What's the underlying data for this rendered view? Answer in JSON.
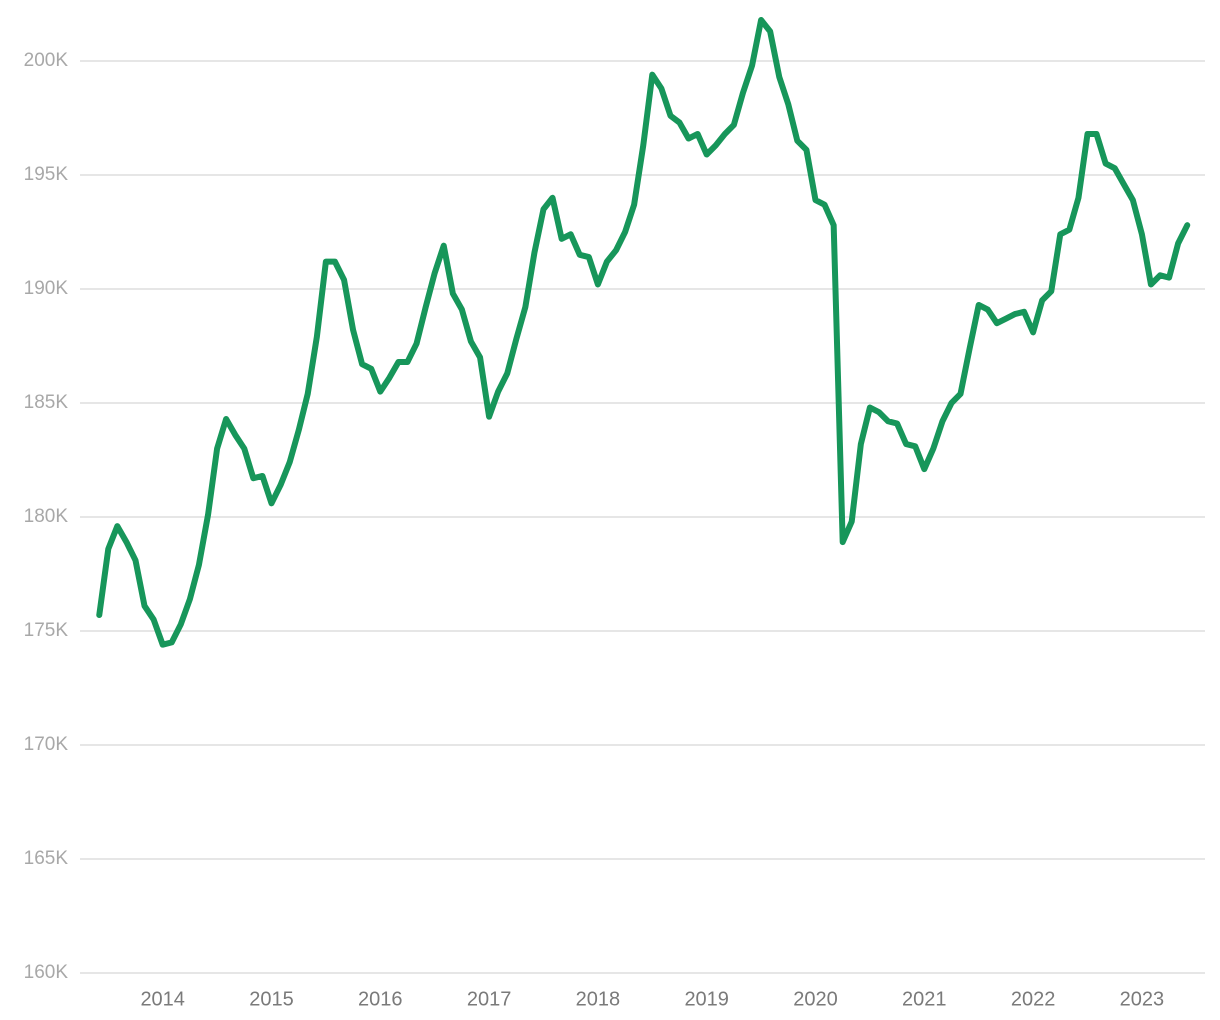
{
  "chart_data": {
    "type": "line",
    "color": "#17965a",
    "grid": true,
    "xlim": [
      2013.24,
      2023.58
    ],
    "xticks": [
      2014,
      2015,
      2016,
      2017,
      2018,
      2019,
      2020,
      2021,
      2022,
      2023
    ],
    "ylim": [
      160000,
      202000
    ],
    "yticks": [
      {
        "value": 160000,
        "label": "160K"
      },
      {
        "value": 165000,
        "label": "165K"
      },
      {
        "value": 170000,
        "label": "170K"
      },
      {
        "value": 175000,
        "label": "175K"
      },
      {
        "value": 180000,
        "label": "180K"
      },
      {
        "value": 185000,
        "label": "185K"
      },
      {
        "value": 190000,
        "label": "190K"
      },
      {
        "value": 195000,
        "label": "195K"
      },
      {
        "value": 200000,
        "label": "200K"
      }
    ],
    "x": [
      2013.417,
      2013.5,
      2013.583,
      2013.667,
      2013.75,
      2013.833,
      2013.917,
      2014,
      2014.083,
      2014.167,
      2014.25,
      2014.333,
      2014.417,
      2014.5,
      2014.583,
      2014.667,
      2014.75,
      2014.833,
      2014.917,
      2015,
      2015.083,
      2015.167,
      2015.25,
      2015.333,
      2015.417,
      2015.5,
      2015.583,
      2015.667,
      2015.75,
      2015.833,
      2015.917,
      2016,
      2016.083,
      2016.167,
      2016.25,
      2016.333,
      2016.417,
      2016.5,
      2016.583,
      2016.667,
      2016.75,
      2016.833,
      2016.917,
      2017,
      2017.083,
      2017.167,
      2017.25,
      2017.333,
      2017.417,
      2017.5,
      2017.583,
      2017.667,
      2017.75,
      2017.833,
      2017.917,
      2018,
      2018.083,
      2018.167,
      2018.25,
      2018.333,
      2018.417,
      2018.5,
      2018.583,
      2018.667,
      2018.75,
      2018.833,
      2018.917,
      2019,
      2019.083,
      2019.167,
      2019.25,
      2019.333,
      2019.417,
      2019.5,
      2019.583,
      2019.667,
      2019.75,
      2019.833,
      2019.917,
      2020,
      2020.083,
      2020.167,
      2020.25,
      2020.333,
      2020.417,
      2020.5,
      2020.583,
      2020.667,
      2020.75,
      2020.833,
      2020.917,
      2021,
      2021.083,
      2021.167,
      2021.25,
      2021.333,
      2021.417,
      2021.5,
      2021.583,
      2021.667,
      2021.75,
      2021.833,
      2021.917,
      2022,
      2022.083,
      2022.167,
      2022.25,
      2022.333,
      2022.417,
      2022.5,
      2022.583,
      2022.667,
      2022.75,
      2022.833,
      2022.917,
      2023,
      2023.083,
      2023.167,
      2023.25,
      2023.333,
      2023.417
    ],
    "values": [
      175700,
      178600,
      179600,
      178900,
      178100,
      176100,
      175500,
      174400,
      174500,
      175300,
      176400,
      177900,
      180100,
      183000,
      184300,
      183600,
      183000,
      181700,
      181800,
      180600,
      181400,
      182400,
      183800,
      185400,
      187900,
      191200,
      191200,
      190400,
      188200,
      186700,
      186500,
      185500,
      186100,
      186800,
      186800,
      187600,
      189200,
      190700,
      191900,
      189800,
      189100,
      187700,
      187000,
      184400,
      185500,
      186300,
      187800,
      189200,
      191600,
      193500,
      194000,
      192200,
      192400,
      191500,
      191400,
      190200,
      191200,
      191700,
      192500,
      193700,
      196300,
      199400,
      198800,
      197600,
      197300,
      196600,
      196800,
      195900,
      196300,
      196800,
      197200,
      198600,
      199800,
      201800,
      201300,
      199300,
      198100,
      196500,
      196100,
      193900,
      193700,
      192800,
      178900,
      179800,
      183200,
      184800,
      184600,
      184200,
      184100,
      183200,
      183100,
      182100,
      183000,
      184200,
      185000,
      185400,
      187400,
      189300,
      189100,
      188500,
      188700,
      188900,
      189000,
      188100,
      189500,
      189900,
      192400,
      192600,
      194000,
      196800,
      196800,
      195500,
      195300,
      194600,
      193900,
      192400,
      190200,
      190600,
      190500,
      192000,
      192800
    ]
  }
}
